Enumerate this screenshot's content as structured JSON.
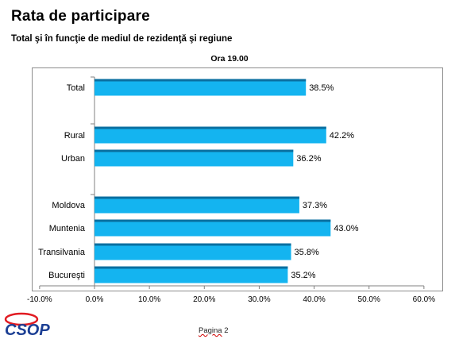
{
  "title": "Rata de participare",
  "subtitle": "Total şi în funcţie de mediul de rezidenţă şi regiune",
  "footer": {
    "prefix": "Pagina",
    "number": "2"
  },
  "logo": {
    "text": "CSOP"
  },
  "colors": {
    "bar": "#14b4f0",
    "bar_top": "#0a6fa0",
    "axis": "#808080",
    "logo_blue": "#1c3f94",
    "logo_red": "#e11b22"
  },
  "chart_data": {
    "type": "bar",
    "orientation": "horizontal",
    "title": "Ora 19.00",
    "categories": [
      "Total",
      "Rural",
      "Urban",
      "Moldova",
      "Muntenia",
      "Transilvania",
      "Bucureşti"
    ],
    "groups": [
      [
        0
      ],
      [
        1,
        2
      ],
      [
        3,
        4,
        5,
        6
      ]
    ],
    "values": [
      38.5,
      42.2,
      36.2,
      37.3,
      43.0,
      35.8,
      35.2
    ],
    "data_labels": [
      "38.5%",
      "42.2%",
      "36.2%",
      "37.3%",
      "43.0%",
      "35.8%",
      "35.2%"
    ],
    "xlim": [
      -10,
      60
    ],
    "xticks": [
      -10,
      0,
      10,
      20,
      30,
      40,
      50,
      60
    ],
    "xtick_labels": [
      "-10.0%",
      "0.0%",
      "10.0%",
      "20.0%",
      "30.0%",
      "40.0%",
      "50.0%",
      "60.0%"
    ],
    "grid": false,
    "legend": "none"
  }
}
